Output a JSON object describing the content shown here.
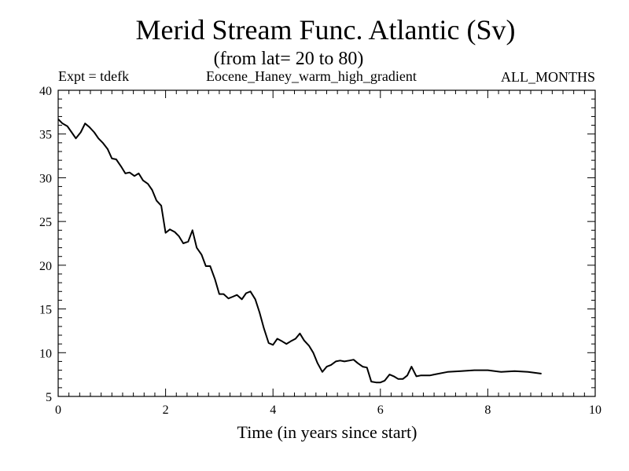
{
  "header": {
    "title": "Merid Stream Func. Atlantic (Sv)",
    "subtitle": "(from lat= 20 to 80)",
    "experiment": "Expt = tdefk",
    "run_name": "Eocene_Haney_warm_high_gradient",
    "period": "ALL_MONTHS"
  },
  "chart_data": {
    "type": "line",
    "title": "Merid Stream Func. Atlantic (Sv)",
    "subtitle": "(from lat= 20 to 80)",
    "xlabel": "Time (in years since start)",
    "ylabel": "",
    "xlim": [
      0,
      10
    ],
    "ylim": [
      5,
      40
    ],
    "xticks": [
      0,
      2,
      4,
      6,
      8,
      10
    ],
    "yticks": [
      5,
      10,
      15,
      20,
      25,
      30,
      35,
      40
    ],
    "grid": false,
    "line_color": "#000000",
    "series": [
      {
        "x": [
          0.0,
          0.08,
          0.17,
          0.25,
          0.33,
          0.42,
          0.5,
          0.58,
          0.67,
          0.75,
          0.83,
          0.92,
          1.0,
          1.08,
          1.17,
          1.25,
          1.33,
          1.42,
          1.5,
          1.58,
          1.67,
          1.75,
          1.83,
          1.92,
          2.0,
          2.08,
          2.17,
          2.25,
          2.33,
          2.42,
          2.5,
          2.58,
          2.67,
          2.75,
          2.83,
          2.92,
          3.0,
          3.08,
          3.17,
          3.25,
          3.33,
          3.42,
          3.5,
          3.58,
          3.67,
          3.75,
          3.83,
          3.92,
          4.0,
          4.08,
          4.17,
          4.25,
          4.33,
          4.42,
          4.5,
          4.58,
          4.67,
          4.75,
          4.83,
          4.92,
          5.0,
          5.08,
          5.17,
          5.25,
          5.33,
          5.42,
          5.5,
          5.58,
          5.67,
          5.75,
          5.83,
          5.92,
          6.0,
          6.08,
          6.17,
          6.25,
          6.33,
          6.42,
          6.5,
          6.58,
          6.67,
          6.75,
          6.83,
          6.92,
          7.0,
          7.25,
          7.5,
          7.75,
          8.0,
          8.25,
          8.5,
          8.75,
          9.0
        ],
        "y": [
          36.7,
          36.2,
          35.9,
          35.2,
          34.5,
          35.2,
          36.2,
          35.8,
          35.2,
          34.5,
          34.0,
          33.3,
          32.2,
          32.1,
          31.3,
          30.5,
          30.6,
          30.2,
          30.5,
          29.7,
          29.3,
          28.6,
          27.4,
          26.8,
          23.7,
          24.1,
          23.8,
          23.3,
          22.5,
          22.7,
          24.0,
          22.0,
          21.2,
          19.9,
          19.9,
          18.4,
          16.7,
          16.7,
          16.2,
          16.4,
          16.6,
          16.1,
          16.8,
          17.0,
          16.1,
          14.6,
          12.8,
          11.1,
          10.9,
          11.6,
          11.3,
          11.0,
          11.3,
          11.6,
          12.2,
          11.4,
          10.8,
          10.0,
          8.8,
          7.8,
          8.4,
          8.6,
          9.0,
          9.1,
          9.0,
          9.1,
          9.2,
          8.8,
          8.4,
          8.3,
          6.7,
          6.6,
          6.6,
          6.8,
          7.5,
          7.3,
          7.0,
          7.0,
          7.4,
          8.4,
          7.3,
          7.4,
          7.4,
          7.4,
          7.5,
          7.8,
          7.9,
          8.0,
          8.0,
          7.8,
          7.9,
          7.8,
          7.6
        ]
      }
    ]
  }
}
